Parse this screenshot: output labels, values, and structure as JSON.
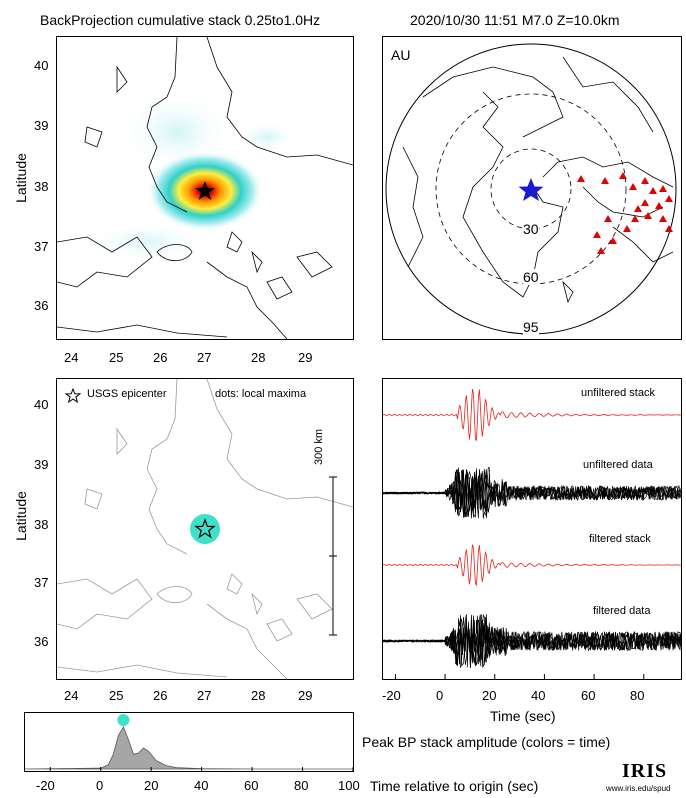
{
  "header": {
    "title": "BackProjection cumulative stack 0.25to1.0Hz",
    "event": "2020/10/30 11:51   M7.0  Z=10.0km"
  },
  "map_top_left": {
    "ylabel": "Latitude",
    "xticks": [
      "24",
      "25",
      "26",
      "27",
      "28",
      "29"
    ],
    "yticks": [
      "40",
      "39",
      "38",
      "37",
      "36"
    ]
  },
  "globe": {
    "network": "AU",
    "distance_labels": [
      "30",
      "60",
      "95"
    ]
  },
  "map_bottom_left": {
    "ylabel": "Latitude",
    "legend_epicenter": "USGS epicenter",
    "legend_dots": "dots: local maxima",
    "scale_label": "300 km",
    "xticks": [
      "24",
      "25",
      "26",
      "27",
      "28",
      "29"
    ],
    "yticks": [
      "40",
      "39",
      "38",
      "37",
      "36"
    ]
  },
  "traces": {
    "labels": [
      "unfiltered stack",
      "unfiltered data",
      "filtered stack",
      "filtered data"
    ],
    "xticks": [
      "-20",
      "0",
      "20",
      "40",
      "60",
      "80"
    ],
    "xlabel": "Time (sec)",
    "caption": "Peak BP stack amplitude (colors = time)"
  },
  "peak_plot": {
    "xticks": [
      "-20",
      "0",
      "20",
      "40",
      "60",
      "80",
      "100"
    ],
    "xlabel": "Time relative to origin (sec)"
  },
  "logo": {
    "text": "IRIS",
    "url": "www.iris.edu/spud"
  },
  "colors": {
    "stack_trace": "#e8211a",
    "station": "#e00000",
    "epicenter": "#1a1ad0",
    "peak_dot": "#3fe0c8"
  },
  "chart_data": [
    {
      "type": "heatmap",
      "title": "BackProjection cumulative stack 0.25to1.0Hz",
      "ylabel": "Latitude",
      "xlim": [
        23.6,
        29.9
      ],
      "ylim": [
        35.4,
        40.4
      ],
      "peak": {
        "lon": 26.8,
        "lat": 37.9
      }
    },
    {
      "type": "line",
      "xlabel": "Time (sec)",
      "xlim": [
        -25,
        95
      ],
      "series": [
        {
          "name": "unfiltered stack"
        },
        {
          "name": "unfiltered data"
        },
        {
          "name": "filtered stack"
        },
        {
          "name": "filtered data"
        }
      ]
    },
    {
      "type": "area",
      "xlabel": "Time relative to origin (sec)",
      "xlim": [
        -30,
        100
      ],
      "x": [
        -30,
        0,
        3,
        5,
        7,
        9,
        11,
        13,
        15,
        17,
        19,
        22,
        26,
        30,
        40,
        60,
        100
      ],
      "values": [
        0,
        0.02,
        0.1,
        0.35,
        0.8,
        1.0,
        0.7,
        0.35,
        0.38,
        0.5,
        0.42,
        0.2,
        0.08,
        0.03,
        0.01,
        0,
        0
      ],
      "peak_time": 9
    }
  ]
}
